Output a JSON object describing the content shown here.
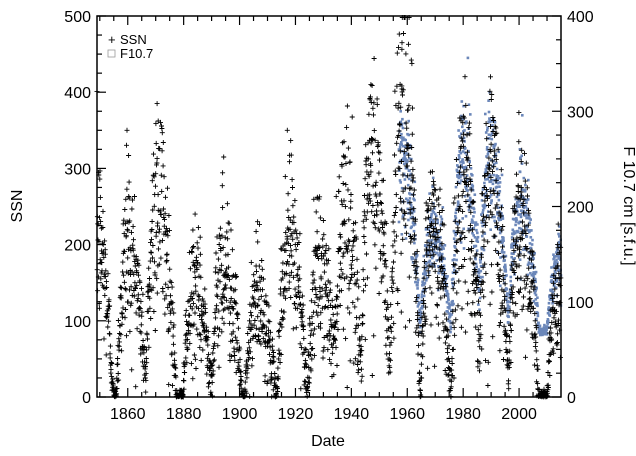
{
  "chart_data": {
    "type": "scatter",
    "xlabel": "Date",
    "ylabel_left": "SSN",
    "ylabel_right": "F 10.7 cm [s.f.u.]",
    "xlim": [
      1849,
      2015
    ],
    "ylim_left": [
      0,
      500
    ],
    "ylim_right": [
      0,
      400
    ],
    "xticks": [
      1860,
      1880,
      1900,
      1920,
      1940,
      1960,
      1980,
      2000
    ],
    "yticks_left": [
      0,
      100,
      200,
      300,
      400,
      500
    ],
    "yticks_right": [
      0,
      100,
      200,
      300,
      400
    ],
    "grid": false,
    "legend": {
      "position": "top-left",
      "entries": [
        "SSN",
        "F10.7"
      ]
    },
    "series": [
      {
        "name": "SSN",
        "axis": "left",
        "marker": "plus",
        "color": "#000000",
        "cycle_peaks": [
          {
            "x": 1848.1,
            "y": 220,
            "max": 320
          },
          {
            "x": 1860.1,
            "y": 190,
            "max": 350
          },
          {
            "x": 1870.6,
            "y": 260,
            "max": 385
          },
          {
            "x": 1883.9,
            "y": 130,
            "max": 240
          },
          {
            "x": 1894.1,
            "y": 170,
            "max": 315
          },
          {
            "x": 1906.2,
            "y": 120,
            "max": 230
          },
          {
            "x": 1917.6,
            "y": 200,
            "max": 350
          },
          {
            "x": 1928.4,
            "y": 160,
            "max": 235
          },
          {
            "x": 1937.4,
            "y": 235,
            "max": 335
          },
          {
            "x": 1947.5,
            "y": 290,
            "max": 410
          },
          {
            "x": 1957.9,
            "y": 360,
            "max": 465
          },
          {
            "x": 1968.9,
            "y": 215,
            "max": 295
          },
          {
            "x": 1979.9,
            "y": 280,
            "max": 360
          },
          {
            "x": 1989.6,
            "y": 280,
            "max": 355
          },
          {
            "x": 2000.3,
            "y": 230,
            "max": 335
          },
          {
            "x": 2014.3,
            "y": 150,
            "max": 200
          }
        ]
      },
      {
        "name": "F10.7",
        "axis": "right",
        "marker": "square",
        "color": "#6b87b9",
        "start_year": 1957,
        "cycle_peaks": [
          {
            "x": 1957.9,
            "y": 255,
            "max": 300
          },
          {
            "x": 1968.9,
            "y": 170,
            "max": 230
          },
          {
            "x": 1979.9,
            "y": 245,
            "max": 295
          },
          {
            "x": 1989.6,
            "y": 245,
            "max": 320
          },
          {
            "x": 2000.3,
            "y": 200,
            "max": 260
          },
          {
            "x": 2014.3,
            "y": 140,
            "max": 165
          }
        ],
        "floor": 70
      }
    ]
  }
}
